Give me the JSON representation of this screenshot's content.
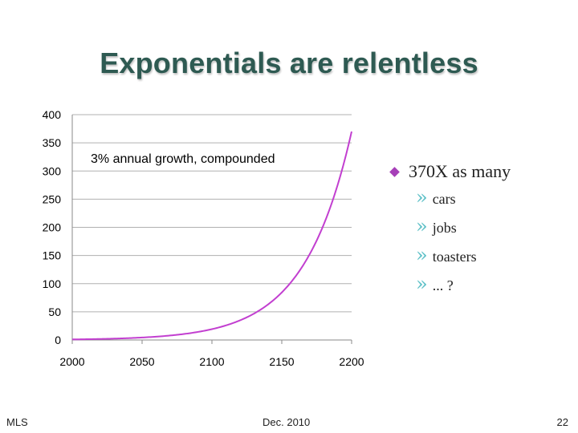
{
  "slide": {
    "title": "Exponentials are relentless",
    "footer_left": "MLS",
    "footer_center": "Dec. 2010",
    "footer_right": "22"
  },
  "bullets": {
    "main": "370X as many",
    "sub_items": [
      "cars",
      "jobs",
      "toasters",
      "... ?"
    ]
  },
  "colors": {
    "title": "#2e5a52",
    "curve": "#c23fd0",
    "bullet_diamond": "#a63fb8",
    "sub_bullet": "#5bbfc6",
    "grid": "#b0b0b0"
  },
  "chart_data": {
    "type": "line",
    "annotation": "3% annual growth, compounded",
    "xlabel": "",
    "ylabel": "",
    "xlim": [
      2000,
      2200
    ],
    "ylim": [
      0,
      400
    ],
    "x_ticks": [
      "2000",
      "2050",
      "2100",
      "2150",
      "2200"
    ],
    "y_ticks": [
      "400",
      "350",
      "300",
      "250",
      "200",
      "150",
      "100",
      "50",
      "0"
    ],
    "grid": "horizontal",
    "series": [
      {
        "x": [
          2000,
          2010,
          2020,
          2030,
          2040,
          2050,
          2060,
          2070,
          2080,
          2090,
          2100,
          2110,
          2120,
          2130,
          2140,
          2150,
          2160,
          2170,
          2180,
          2190,
          2200
        ],
        "y": [
          1.0,
          1.34,
          1.81,
          2.43,
          3.26,
          4.38,
          5.89,
          7.92,
          10.6,
          14.3,
          19.2,
          25.8,
          34.7,
          46.6,
          62.7,
          84.3,
          113,
          152,
          204,
          275,
          370
        ]
      }
    ]
  }
}
